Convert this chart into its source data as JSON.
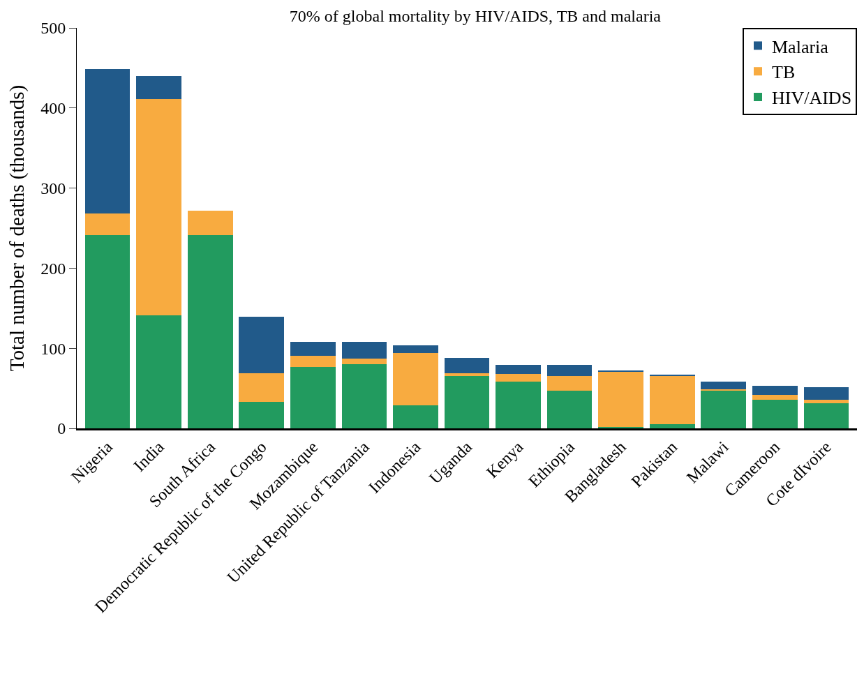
{
  "chart_data": {
    "type": "bar",
    "stacked": true,
    "title": "70% of global mortality by HIV/AIDS, TB and malaria",
    "ylabel": "Total number of deaths (thousands)",
    "categories": [
      "Nigeria",
      "India",
      "South Africa",
      "Democratic Republic of the Congo",
      "Mozambique",
      "United Republic of Tanzania",
      "Indonesia",
      "Uganda",
      "Kenya",
      "Ethiopia",
      "Bangladesh",
      "Pakistan",
      "Malawi",
      "Cameroon",
      "Cote dIvoire"
    ],
    "series": [
      {
        "name": "HIV/AIDS",
        "color": "#229b5f",
        "values": [
          241,
          141,
          241,
          33,
          77,
          80,
          29,
          65,
          58,
          47,
          2,
          5,
          47,
          36,
          31
        ]
      },
      {
        "name": "TB",
        "color": "#f8ab40",
        "values": [
          27,
          270,
          31,
          36,
          14,
          7,
          65,
          4,
          10,
          18,
          69,
          61,
          2,
          6,
          5
        ]
      },
      {
        "name": "Malaria",
        "color": "#215a8a",
        "values": [
          181,
          29,
          0,
          70,
          17,
          21,
          10,
          19,
          11,
          14,
          1,
          1,
          9,
          11,
          15
        ]
      }
    ],
    "ylim": [
      0,
      500
    ],
    "yticks": [
      0,
      100,
      200,
      300,
      400,
      500
    ],
    "legend": "top right"
  }
}
